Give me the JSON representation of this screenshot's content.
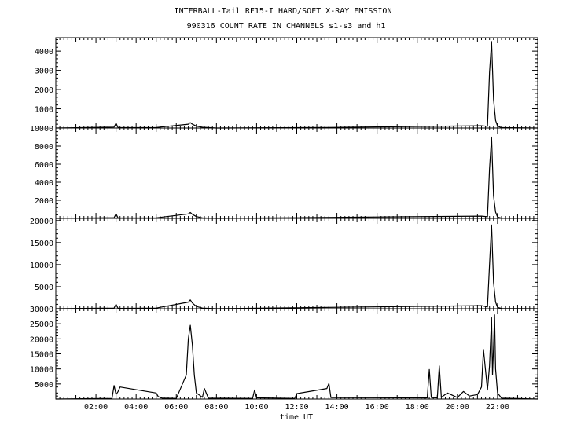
{
  "title": "INTERBALL-Tail RF15-I HARD/SOFT X-RAY EMISSION",
  "subtitle": "990316  COUNT RATE IN CHANNELS s1-s3 and h1",
  "chart_data": [
    {
      "type": "line",
      "panel": "s1",
      "xlim": [
        0,
        24
      ],
      "ylim": [
        0,
        4700
      ],
      "yticks": [
        1000,
        2000,
        3000,
        4000
      ],
      "x": [
        0,
        2.9,
        3.0,
        3.1,
        5.0,
        6.6,
        6.7,
        6.8,
        7.0,
        7.3,
        8.0,
        13.5,
        21.2,
        21.5,
        21.6,
        21.7,
        21.8,
        21.9,
        22.0,
        22.2,
        24
      ],
      "y": [
        0,
        50,
        250,
        20,
        30,
        200,
        280,
        200,
        100,
        40,
        0,
        30,
        120,
        90,
        2900,
        4500,
        1500,
        400,
        100,
        20,
        0
      ]
    },
    {
      "type": "line",
      "panel": "s2",
      "xlim": [
        0,
        24
      ],
      "ylim": [
        0,
        10000
      ],
      "yticks": [
        2000,
        4000,
        6000,
        8000,
        10000
      ],
      "x": [
        0,
        2.9,
        3.0,
        3.1,
        5.0,
        6.6,
        6.7,
        6.8,
        7.0,
        7.3,
        8.0,
        21.2,
        21.5,
        21.6,
        21.7,
        21.8,
        21.9,
        22.0,
        22.2,
        24
      ],
      "y": [
        0,
        80,
        500,
        40,
        60,
        500,
        650,
        450,
        200,
        60,
        0,
        250,
        180,
        5500,
        9000,
        2500,
        700,
        150,
        30,
        0
      ]
    },
    {
      "type": "line",
      "panel": "s3",
      "xlim": [
        0,
        24
      ],
      "ylim": [
        0,
        20500
      ],
      "yticks": [
        5000,
        10000,
        15000,
        20000
      ],
      "x": [
        0,
        2.9,
        3.0,
        3.1,
        5.0,
        6.6,
        6.7,
        6.8,
        7.0,
        7.3,
        8.0,
        21.2,
        21.5,
        21.6,
        21.7,
        21.8,
        21.9,
        22.0,
        22.2,
        24
      ],
      "y": [
        0,
        150,
        1000,
        80,
        150,
        1500,
        2000,
        1300,
        500,
        150,
        0,
        700,
        400,
        10000,
        19000,
        6000,
        1500,
        300,
        60,
        0
      ]
    },
    {
      "type": "line",
      "panel": "h1",
      "xlim": [
        0,
        24
      ],
      "ylim": [
        0,
        30000
      ],
      "yticks": [
        5000,
        10000,
        15000,
        20000,
        25000,
        30000
      ],
      "x": [
        0,
        2.8,
        2.9,
        3.0,
        3.1,
        3.2,
        5.0,
        5.1,
        5.3,
        6.0,
        6.5,
        6.6,
        6.7,
        6.8,
        6.9,
        7.0,
        7.3,
        7.4,
        7.6,
        9.8,
        9.9,
        10.0,
        11.9,
        12.0,
        13.5,
        13.6,
        13.7,
        18.5,
        18.6,
        18.7,
        19.0,
        19.1,
        19.2,
        19.5,
        20.0,
        20.3,
        20.6,
        21.0,
        21.2,
        21.3,
        21.5,
        21.6,
        21.7,
        21.75,
        21.8,
        21.85,
        21.9,
        22.0,
        22.2,
        24
      ],
      "y": [
        0,
        200,
        4500,
        1500,
        2500,
        4000,
        2000,
        800,
        300,
        200,
        8000,
        20000,
        24500,
        18000,
        8000,
        2000,
        600,
        3500,
        300,
        200,
        3000,
        400,
        200,
        1800,
        3500,
        5200,
        500,
        400,
        9800,
        500,
        400,
        11000,
        600,
        2000,
        500,
        2500,
        1000,
        1500,
        4000,
        16500,
        3000,
        11000,
        27000,
        8000,
        17000,
        28000,
        10000,
        2000,
        300,
        0
      ]
    }
  ],
  "xaxis": {
    "label": "time UT",
    "tick_labels": [
      "02:00",
      "04:00",
      "06:00",
      "08:00",
      "10:00",
      "12:00",
      "14:00",
      "16:00",
      "18:00",
      "20:00",
      "22:00"
    ],
    "tick_values": [
      2,
      4,
      6,
      8,
      10,
      12,
      14,
      16,
      18,
      20,
      22
    ]
  }
}
